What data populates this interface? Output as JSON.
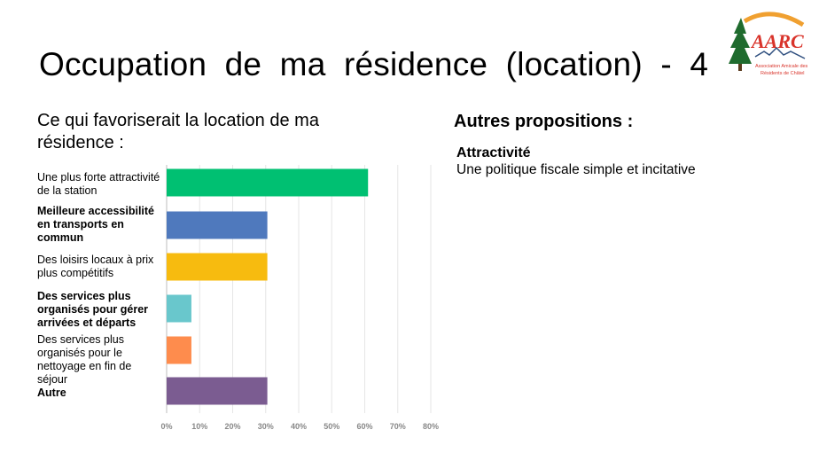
{
  "slide": {
    "title": "Occupation de ma résidence (location) - 4",
    "subtitle": "Ce qui favoriserait la location de ma résidence :",
    "other_heading": "Autres propositions :",
    "proposal_title": "Attractivité",
    "proposal_text": "Une politique fiscale simple et incitative"
  },
  "logo": {
    "text": "AARC",
    "caption_line1": "Association Amicale des",
    "caption_line2": "Résidents de Châtel",
    "colors": {
      "orange": "#f0a030",
      "red": "#d9342b",
      "green": "#1f6b2e"
    }
  },
  "chart_data": {
    "type": "bar",
    "orientation": "horizontal",
    "categories": [
      "Une plus forte attractivité de la station",
      "Meilleure accessibilité en transports en commun",
      "Des loisirs locaux à prix plus compétitifs",
      "Des services plus organisés pour gérer arrivées et départs",
      "Des services plus organisés pour le nettoyage en fin de séjour",
      "Autre"
    ],
    "values": [
      61,
      30.5,
      30.5,
      7.5,
      7.5,
      30.5
    ],
    "colors": [
      "#00c072",
      "#4f79bd",
      "#f7bb0f",
      "#69c7cc",
      "#fe8c4d",
      "#7b5c91"
    ],
    "xlim": [
      0,
      80
    ],
    "xticks": [
      "0%",
      "10%",
      "20%",
      "30%",
      "40%",
      "50%",
      "60%",
      "70%",
      "80%"
    ],
    "grid": true
  }
}
